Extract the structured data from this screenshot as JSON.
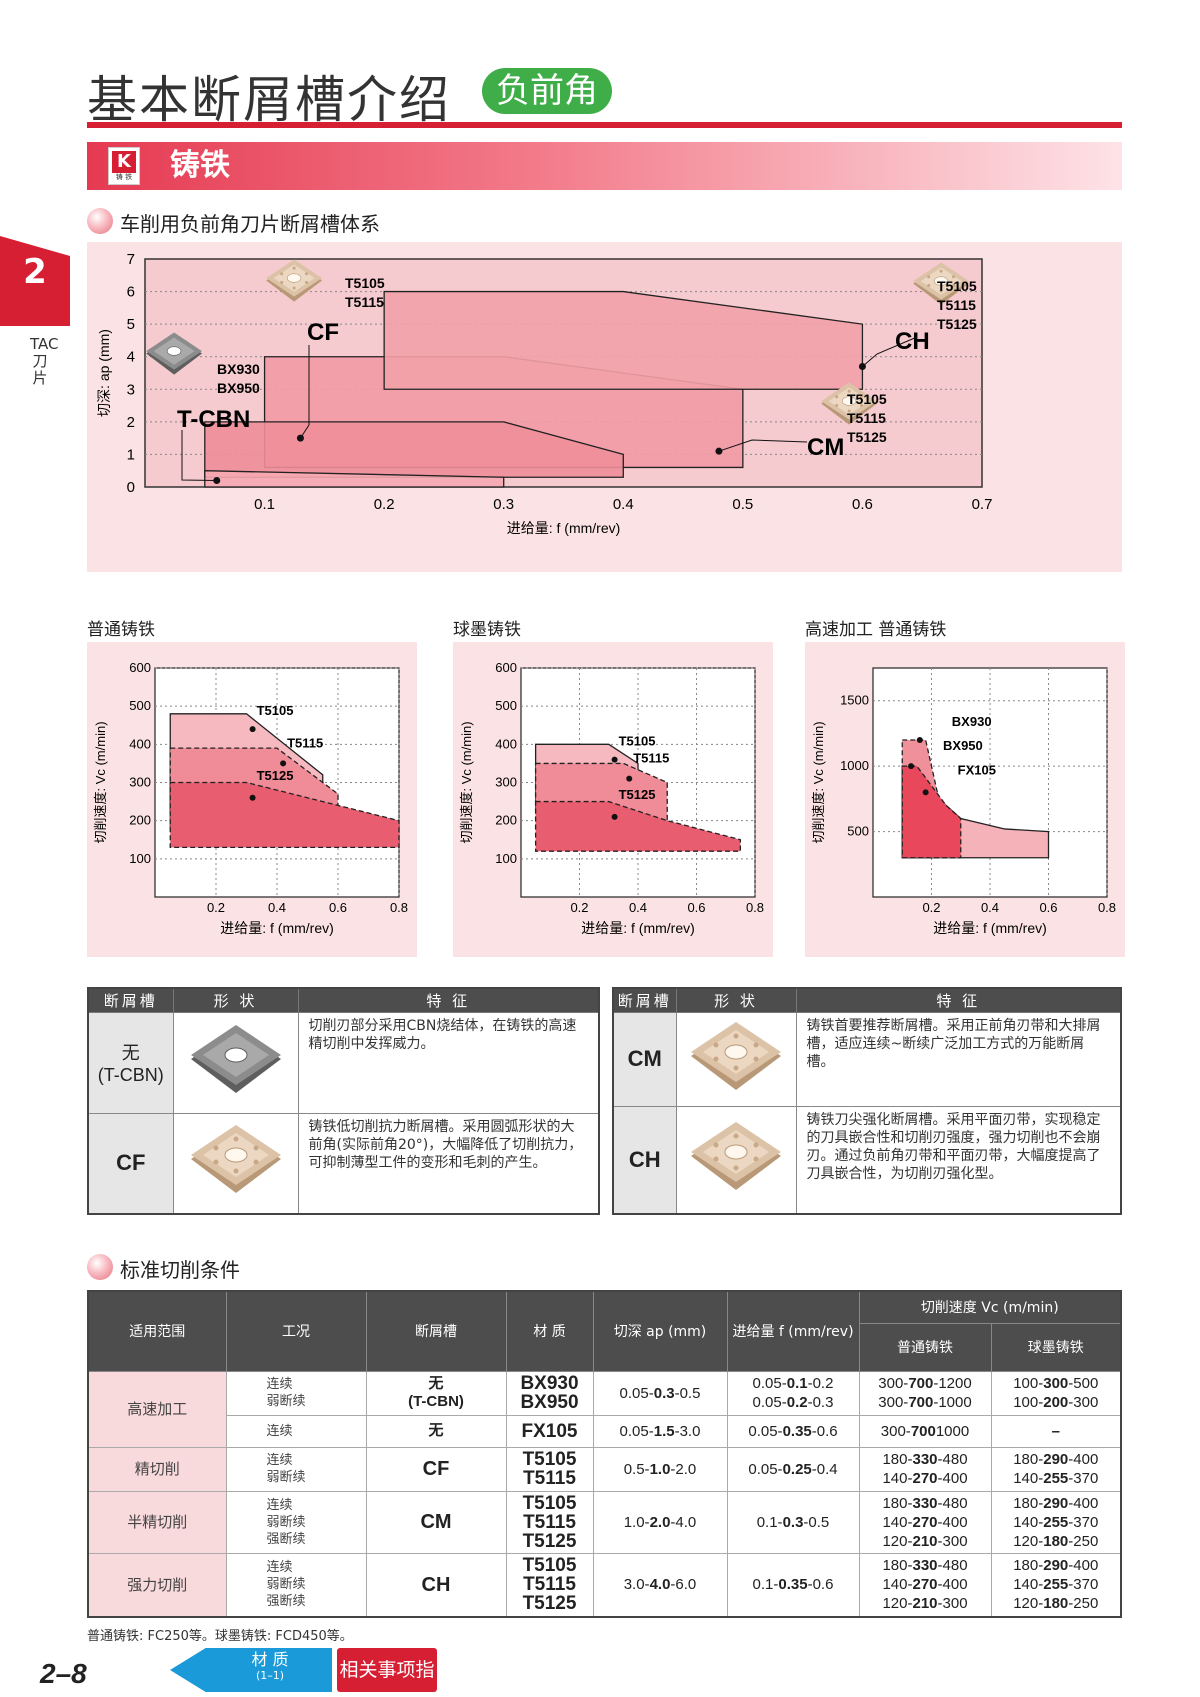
{
  "header": {
    "title": "基本断屑槽介绍",
    "badge": "负前角"
  },
  "chapter": {
    "number": "2",
    "label": "TAC刀片"
  },
  "section": {
    "k_letter": "K",
    "k_sub": "铸 铁",
    "title": "铸铁"
  },
  "overview": {
    "heading": "车削用负前角刀片断屑槽体系",
    "chart_data": {
      "type": "area",
      "xlabel": "进给量: f (mm/rev)",
      "ylabel": "切深: ap (mm)",
      "xlim": [
        0,
        0.7
      ],
      "ylim": [
        0,
        7
      ],
      "xticks": [
        "0.1",
        "0.2",
        "0.3",
        "0.4",
        "0.5",
        "0.6",
        "0.7"
      ],
      "yticks": [
        "0",
        "1",
        "2",
        "3",
        "4",
        "5",
        "6",
        "7"
      ],
      "regions": [
        {
          "name": "T-CBN",
          "grades": [
            "BX930",
            "BX950"
          ],
          "polygon": [
            [
              0.05,
              0
            ],
            [
              0.3,
              0
            ],
            [
              0.3,
              0.3
            ],
            [
              0.05,
              0.5
            ]
          ]
        },
        {
          "name": "CF",
          "grades": [
            "T5105",
            "T5115"
          ],
          "polygon": [
            [
              0.05,
              0.3
            ],
            [
              0.4,
              0.3
            ],
            [
              0.4,
              1
            ],
            [
              0.3,
              2
            ],
            [
              0.05,
              2
            ]
          ]
        },
        {
          "name": "CM",
          "grades": [
            "T5105",
            "T5115",
            "T5125"
          ],
          "polygon": [
            [
              0.1,
              0.6
            ],
            [
              0.5,
              0.6
            ],
            [
              0.5,
              3
            ],
            [
              0.3,
              4
            ],
            [
              0.1,
              4
            ]
          ]
        },
        {
          "name": "CH",
          "grades": [
            "T5105",
            "T5115",
            "T5125"
          ],
          "polygon": [
            [
              0.2,
              3
            ],
            [
              0.6,
              3
            ],
            [
              0.6,
              5
            ],
            [
              0.4,
              6
            ],
            [
              0.2,
              6
            ]
          ]
        }
      ]
    }
  },
  "small_charts": [
    {
      "heading": "普通铸铁",
      "chart_data": {
        "type": "area",
        "xlabel": "进给量: f (mm/rev)",
        "ylabel": "切削速度: Vc (m/min)",
        "xlim": [
          0,
          0.8
        ],
        "ylim": [
          0,
          600
        ],
        "xticks": [
          "0.2",
          "0.4",
          "0.6",
          "0.8"
        ],
        "yticks": [
          "100",
          "200",
          "300",
          "400",
          "500",
          "600"
        ],
        "series": [
          {
            "name": "T5105",
            "points": [
              [
                0.05,
                480
              ],
              [
                0.3,
                480
              ],
              [
                0.55,
                320
              ],
              [
                0.55,
                230
              ],
              [
                0.05,
                230
              ]
            ]
          },
          {
            "name": "T5115",
            "points": [
              [
                0.05,
                390
              ],
              [
                0.4,
                390
              ],
              [
                0.6,
                270
              ],
              [
                0.6,
                180
              ],
              [
                0.05,
                180
              ]
            ]
          },
          {
            "name": "T5125",
            "points": [
              [
                0.05,
                300
              ],
              [
                0.3,
                300
              ],
              [
                0.5,
                260
              ],
              [
                0.8,
                200
              ],
              [
                0.8,
                130
              ],
              [
                0.05,
                130
              ]
            ]
          }
        ]
      }
    },
    {
      "heading": "球墨铸铁",
      "chart_data": {
        "type": "area",
        "xlabel": "进给量: f (mm/rev)",
        "ylabel": "切削速度: Vc (m/min)",
        "xlim": [
          0,
          0.8
        ],
        "ylim": [
          0,
          600
        ],
        "xticks": [
          "0.2",
          "0.4",
          "0.6",
          "0.8"
        ],
        "yticks": [
          "100",
          "200",
          "300",
          "400",
          "500",
          "600"
        ],
        "series": [
          {
            "name": "T5105",
            "points": [
              [
                0.05,
                400
              ],
              [
                0.3,
                400
              ],
              [
                0.4,
                350
              ],
              [
                0.4,
                220
              ],
              [
                0.05,
                220
              ]
            ]
          },
          {
            "name": "T5115",
            "points": [
              [
                0.05,
                350
              ],
              [
                0.35,
                350
              ],
              [
                0.5,
                300
              ],
              [
                0.5,
                180
              ],
              [
                0.05,
                180
              ]
            ]
          },
          {
            "name": "T5125",
            "points": [
              [
                0.05,
                250
              ],
              [
                0.3,
                250
              ],
              [
                0.5,
                200
              ],
              [
                0.75,
                150
              ],
              [
                0.75,
                120
              ],
              [
                0.05,
                120
              ]
            ]
          }
        ]
      }
    },
    {
      "heading": "高速加工 普通铸铁",
      "chart_data": {
        "type": "area",
        "xlabel": "进给量: f (mm/rev)",
        "ylabel": "切削速度: Vc (m/min)",
        "xlim": [
          0,
          0.8
        ],
        "ylim": [
          0,
          1750
        ],
        "xticks": [
          "0.2",
          "0.4",
          "0.6",
          "0.8"
        ],
        "yticks": [
          "500",
          "1000",
          "1500"
        ],
        "series": [
          {
            "name": "BX930",
            "points": [
              [
                0.1,
                1200
              ],
              [
                0.18,
                1200
              ],
              [
                0.22,
                800
              ],
              [
                0.22,
                300
              ],
              [
                0.1,
                300
              ]
            ]
          },
          {
            "name": "BX950",
            "points": [
              [
                0.1,
                1000
              ],
              [
                0.15,
                1000
              ],
              [
                0.25,
                700
              ],
              [
                0.3,
                600
              ],
              [
                0.3,
                300
              ],
              [
                0.1,
                300
              ]
            ]
          },
          {
            "name": "FX105",
            "points": [
              [
                0.1,
                1000
              ],
              [
                0.2,
                800
              ],
              [
                0.3,
                600
              ],
              [
                0.45,
                520
              ],
              [
                0.6,
                500
              ],
              [
                0.6,
                300
              ],
              [
                0.1,
                300
              ]
            ]
          }
        ]
      }
    }
  ],
  "chipbreaker_table": {
    "headers": [
      "断屑槽",
      "形 状",
      "特 征"
    ],
    "left": [
      {
        "name": "无\n(T-CBN)",
        "feature": "切削刃部分采用CBN烧结体，在铸铁的高速精切削中发挥威力。",
        "insert": "cbn"
      },
      {
        "name": "CF",
        "feature": "铸铁低切削抗力断屑槽。采用圆弧形状的大前角(实际前角20°)，大幅降低了切削抗力，可抑制薄型工件的变形和毛刺的产生。",
        "insert": "coated"
      }
    ],
    "right": [
      {
        "name": "CM",
        "feature": "铸铁首要推荐断屑槽。采用正前角刃带和大排屑槽，适应连续~断续广泛加工方式的万能断屑槽。",
        "insert": "coated"
      },
      {
        "name": "CH",
        "feature": "铸铁刀尖强化断屑槽。采用平面刃带，实现稳定的刀具嵌合性和切削刃强度，强力切削也不会崩刃。通过负前角刃带和平面刃带，大幅度提高了刀具嵌合性，为切削刃强化型。",
        "insert": "coated"
      }
    ]
  },
  "conditions": {
    "heading": "标准切削条件",
    "headers": {
      "area": "适用范围",
      "work": "工况",
      "groove": "断屑槽",
      "grade": "材 质",
      "ap": "切深 ap (mm)",
      "f": "进给量 f (mm/rev)",
      "vc": "切削速度 Vc (m/min)",
      "vc_gray": "普通铸铁",
      "vc_ductile": "球墨铸铁"
    },
    "rows": [
      {
        "area": "高速加工",
        "work": "连续\n弱断续",
        "groove": "无\n(T-CBN)",
        "grade": "BX930\nBX950",
        "ap": [
          "0.05-",
          "0.3",
          "-0.5"
        ],
        "f": [
          [
            "0.05-",
            "0.1",
            "-0.2"
          ],
          [
            "0.05-",
            "0.2",
            "-0.3"
          ]
        ],
        "gray": [
          [
            "300-",
            "700",
            "-1200"
          ],
          [
            "300-",
            "700",
            "-1000"
          ]
        ],
        "ductile": [
          [
            "100-",
            "300",
            "-500"
          ],
          [
            "100-",
            "200",
            "-300"
          ]
        ]
      },
      {
        "area": "",
        "work": "连续",
        "groove": "无",
        "grade": "FX105",
        "ap": [
          "0.05-",
          "1.5",
          "-3.0"
        ],
        "f": [
          [
            "0.05-",
            "0.35",
            "-0.6"
          ]
        ],
        "gray": [
          [
            "300-",
            "700",
            "1000"
          ]
        ],
        "ductile": [
          [
            "",
            "–",
            ""
          ]
        ]
      },
      {
        "area": "精切削",
        "work": "连续\n弱断续",
        "groove": "CF",
        "grade": "T5105\nT5115",
        "ap": [
          "0.5-",
          "1.0",
          "-2.0"
        ],
        "f": [
          [
            "0.05-",
            "0.25",
            "-0.4"
          ]
        ],
        "gray": [
          [
            "180-",
            "330",
            "-480"
          ],
          [
            "140-",
            "270",
            "-400"
          ]
        ],
        "ductile": [
          [
            "180-",
            "290",
            "-400"
          ],
          [
            "140-",
            "255",
            "-370"
          ]
        ]
      },
      {
        "area": "半精切削",
        "work": "连续\n弱断续\n强断续",
        "groove": "CM",
        "grade": "T5105\nT5115\nT5125",
        "ap": [
          "1.0-",
          "2.0",
          "-4.0"
        ],
        "f": [
          [
            "0.1-",
            "0.3",
            "-0.5"
          ]
        ],
        "gray": [
          [
            "180-",
            "330",
            "-480"
          ],
          [
            "140-",
            "270",
            "-400"
          ],
          [
            "120-",
            "210",
            "-300"
          ]
        ],
        "ductile": [
          [
            "180-",
            "290",
            "-400"
          ],
          [
            "140-",
            "255",
            "-370"
          ],
          [
            "120-",
            "180",
            "-250"
          ]
        ]
      },
      {
        "area": "强力切削",
        "work": "连续\n弱断续\n强断续",
        "groove": "CH",
        "grade": "T5105\nT5115\nT5125",
        "ap": [
          "3.0-",
          "4.0",
          "-6.0"
        ],
        "f": [
          [
            "0.1-",
            "0.35",
            "-0.6"
          ]
        ],
        "gray": [
          [
            "180-",
            "330",
            "-480"
          ],
          [
            "140-",
            "270",
            "-400"
          ],
          [
            "120-",
            "210",
            "-300"
          ]
        ],
        "ductile": [
          [
            "180-",
            "290",
            "-400"
          ],
          [
            "140-",
            "255",
            "-370"
          ],
          [
            "120-",
            "180",
            "-250"
          ]
        ]
      }
    ],
    "note": "普通铸铁: FC250等。球墨铸铁: FCD450等。"
  },
  "footer": {
    "page": "2–8",
    "nav_back": "材 质",
    "nav_back_sub": "(1–1)",
    "nav_guide": "相关事项指南"
  }
}
